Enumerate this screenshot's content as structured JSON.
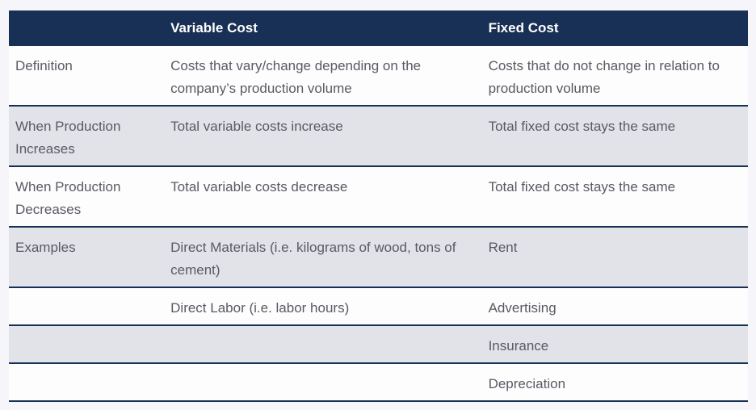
{
  "page": {
    "background_color": "#f6f6fa"
  },
  "table": {
    "accent_color": "#183055",
    "shaded_row_color": "#e2e3e9",
    "plain_row_color": "#fdfdfe",
    "text_color": "#595a62",
    "header_text_color": "#ffffff",
    "header": {
      "label_col": "",
      "variable_col": "Variable Cost",
      "fixed_col": "Fixed Cost"
    },
    "rows": [
      {
        "label": "Definition",
        "variable": "Costs that vary/change depending on the company’s production volume",
        "fixed": "Costs that do not change in relation to production volume"
      },
      {
        "label": "When Production Increases",
        "variable": "Total variable costs increase",
        "fixed": "Total fixed cost stays the same"
      },
      {
        "label": "When Production Decreases",
        "variable": "Total variable costs decrease",
        "fixed": "Total fixed cost stays the same"
      },
      {
        "label": "Examples",
        "variable": "Direct Materials (i.e. kilograms of wood, tons of cement)",
        "fixed": "Rent"
      },
      {
        "label": "",
        "variable": "Direct Labor (i.e. labor hours)",
        "fixed": "Advertising"
      },
      {
        "label": "",
        "variable": "",
        "fixed": "Insurance"
      },
      {
        "label": "",
        "variable": "",
        "fixed": "Depreciation"
      }
    ]
  }
}
